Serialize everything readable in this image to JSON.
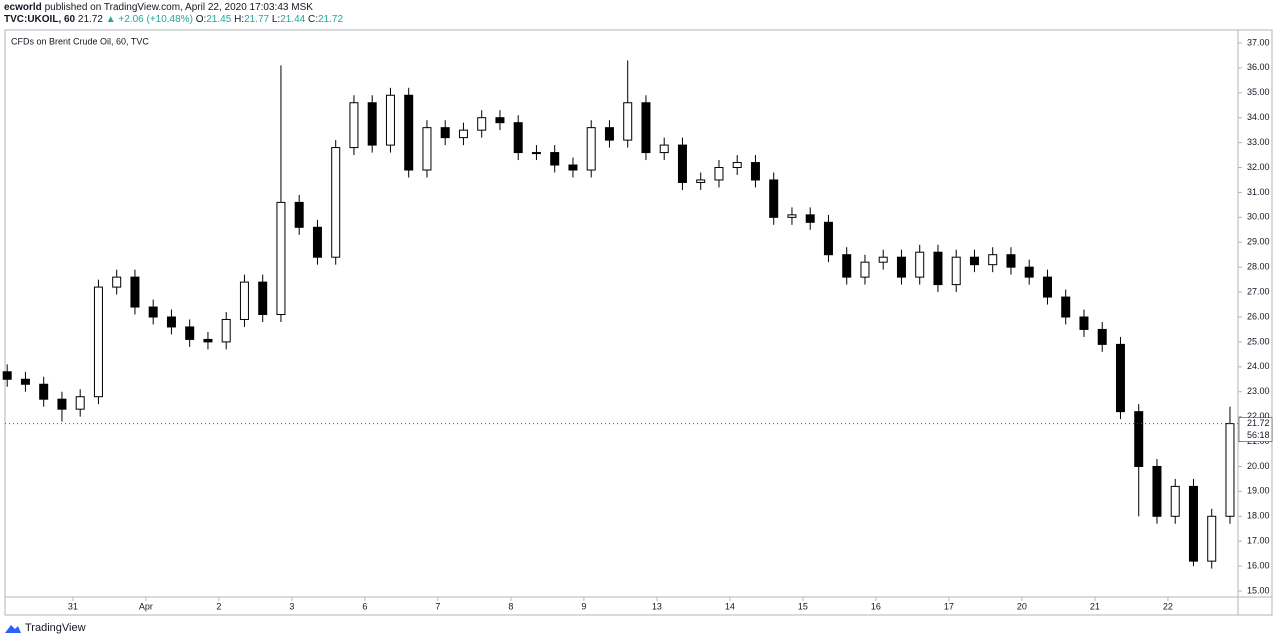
{
  "header": {
    "author": "ecworld",
    "published": "published on TradingView.com, April 22, 2020 17:03:43 MSK"
  },
  "quote": {
    "symbol": "TVC:UKOIL, 60",
    "last": "21.72",
    "arrow": "▲",
    "change": "+2.06 (+10.48%)",
    "ohlc": [
      {
        "label": "O:",
        "value": "21.45"
      },
      {
        "label": "H:",
        "value": "21.77"
      },
      {
        "label": "L:",
        "value": "21.44"
      },
      {
        "label": "C:",
        "value": "21.72"
      }
    ]
  },
  "footer": {
    "brand": "TradingView"
  },
  "chart_data": {
    "type": "candlestick",
    "title": "CFDs on Brent Crude Oil, 60, TVC",
    "up_color": "#ffffff",
    "down_color": "#000000",
    "wick_color": "#000000",
    "last_price": 21.72,
    "countdown": "56:18",
    "xlim": [
      0.07,
      16.96
    ],
    "xticks": [
      {
        "value": 1,
        "label": "31"
      },
      {
        "value": 2,
        "label": "Apr"
      },
      {
        "value": 3,
        "label": "2"
      },
      {
        "value": 4,
        "label": "3"
      },
      {
        "value": 5,
        "label": "6"
      },
      {
        "value": 6,
        "label": "7"
      },
      {
        "value": 7,
        "label": "8"
      },
      {
        "value": 8,
        "label": "9"
      },
      {
        "value": 9,
        "label": "13"
      },
      {
        "value": 10,
        "label": "14"
      },
      {
        "value": 11,
        "label": "15"
      },
      {
        "value": 12,
        "label": "16"
      },
      {
        "value": 13,
        "label": "17"
      },
      {
        "value": 14,
        "label": "20"
      },
      {
        "value": 15,
        "label": "21"
      },
      {
        "value": 16,
        "label": "22"
      }
    ],
    "ylim": [
      14.76,
      37.52
    ],
    "yticks": [
      {
        "value": 15,
        "label": "15.00"
      },
      {
        "value": 16,
        "label": "16.00"
      },
      {
        "value": 17,
        "label": "17.00"
      },
      {
        "value": 18,
        "label": "18.00"
      },
      {
        "value": 19,
        "label": "19.00"
      },
      {
        "value": 20,
        "label": "20.00"
      },
      {
        "value": 21,
        "label": "21.00"
      },
      {
        "value": 22,
        "label": "22.00"
      },
      {
        "value": 23,
        "label": "23.00"
      },
      {
        "value": 24,
        "label": "24.00"
      },
      {
        "value": 25,
        "label": "25.00"
      },
      {
        "value": 26,
        "label": "26.00"
      },
      {
        "value": 27,
        "label": "27.00"
      },
      {
        "value": 28,
        "label": "28.00"
      },
      {
        "value": 29,
        "label": "29.00"
      },
      {
        "value": 30,
        "label": "30.00"
      },
      {
        "value": 31,
        "label": "31.00"
      },
      {
        "value": 32,
        "label": "32.00"
      },
      {
        "value": 33,
        "label": "33.00"
      },
      {
        "value": 34,
        "label": "34.00"
      },
      {
        "value": 35,
        "label": "35.00"
      },
      {
        "value": 36,
        "label": "36.00"
      },
      {
        "value": 37,
        "label": "37.00"
      }
    ],
    "x": [
      0.1,
      0.35,
      0.6,
      0.85,
      1.1,
      1.35,
      1.6,
      1.85,
      2.1,
      2.35,
      2.6,
      2.85,
      3.1,
      3.35,
      3.6,
      3.85,
      4.1,
      4.35,
      4.6,
      4.85,
      5.1,
      5.35,
      5.6,
      5.85,
      6.1,
      6.35,
      6.6,
      6.85,
      7.1,
      7.35,
      7.6,
      7.85,
      8.1,
      8.35,
      8.6,
      8.85,
      9.1,
      9.35,
      9.6,
      9.85,
      10.1,
      10.35,
      10.6,
      10.85,
      11.1,
      11.35,
      11.6,
      11.85,
      12.1,
      12.35,
      12.6,
      12.85,
      13.1,
      13.35,
      13.6,
      13.85,
      14.1,
      14.35,
      14.6,
      14.85,
      15.1,
      15.35,
      15.6,
      15.85,
      16.1,
      16.35,
      16.6,
      16.85
    ],
    "open": [
      23.8,
      23.5,
      23.3,
      22.7,
      22.3,
      22.8,
      27.2,
      27.6,
      26.4,
      26.0,
      25.6,
      25.1,
      25.0,
      25.9,
      27.4,
      26.1,
      30.6,
      29.6,
      28.4,
      32.8,
      34.6,
      32.9,
      34.9,
      31.9,
      33.6,
      33.2,
      33.5,
      34.0,
      33.8,
      32.6,
      32.6,
      32.1,
      31.9,
      33.6,
      33.1,
      34.6,
      32.6,
      32.9,
      31.4,
      31.5,
      32.0,
      32.2,
      31.5,
      30.0,
      30.1,
      29.8,
      28.5,
      27.6,
      28.2,
      28.4,
      27.6,
      28.6,
      27.3,
      28.4,
      28.1,
      28.5,
      28.0,
      27.6,
      26.8,
      26.0,
      25.5,
      24.9,
      22.2,
      20.0,
      18.0,
      19.2,
      16.2,
      18.0
    ],
    "high": [
      24.1,
      23.8,
      23.6,
      23.0,
      23.1,
      27.5,
      27.9,
      27.9,
      26.7,
      26.3,
      25.9,
      25.4,
      26.2,
      27.7,
      27.7,
      36.1,
      30.9,
      29.9,
      33.1,
      34.9,
      34.9,
      35.2,
      35.2,
      33.9,
      33.9,
      33.8,
      34.3,
      34.3,
      34.1,
      32.9,
      32.9,
      32.4,
      33.9,
      33.9,
      36.3,
      34.9,
      33.2,
      33.2,
      31.8,
      32.3,
      32.5,
      32.5,
      31.8,
      30.4,
      30.4,
      30.1,
      28.8,
      28.5,
      28.7,
      28.7,
      28.9,
      28.9,
      28.7,
      28.7,
      28.8,
      28.8,
      28.3,
      27.9,
      27.1,
      26.3,
      25.8,
      25.2,
      22.5,
      20.3,
      19.5,
      19.5,
      18.3,
      22.4
    ],
    "low": [
      23.2,
      23.0,
      22.4,
      21.8,
      22.0,
      22.5,
      26.9,
      26.1,
      25.7,
      25.3,
      24.8,
      24.7,
      24.7,
      25.6,
      25.8,
      25.8,
      29.3,
      28.1,
      28.1,
      32.5,
      32.6,
      32.6,
      31.6,
      31.6,
      32.9,
      32.9,
      33.2,
      33.5,
      32.3,
      32.3,
      31.8,
      31.6,
      31.6,
      32.8,
      32.8,
      32.3,
      32.3,
      31.1,
      31.1,
      31.2,
      31.7,
      31.2,
      29.7,
      29.7,
      29.5,
      28.2,
      27.3,
      27.3,
      27.9,
      27.3,
      27.3,
      27.0,
      27.0,
      27.8,
      27.8,
      27.7,
      27.3,
      26.5,
      25.7,
      25.2,
      24.6,
      21.9,
      18.0,
      17.7,
      17.7,
      16.0,
      15.9,
      17.7
    ],
    "close": [
      23.5,
      23.3,
      22.7,
      22.3,
      22.8,
      27.2,
      27.6,
      26.4,
      26.0,
      25.6,
      25.1,
      25.0,
      25.9,
      27.4,
      26.1,
      30.6,
      29.6,
      28.4,
      32.8,
      34.6,
      32.9,
      34.9,
      31.9,
      33.6,
      33.2,
      33.5,
      34.0,
      33.8,
      32.6,
      32.6,
      32.1,
      31.9,
      33.6,
      33.1,
      34.6,
      32.6,
      32.9,
      31.4,
      31.5,
      32.0,
      32.2,
      31.5,
      30.0,
      30.1,
      29.8,
      28.5,
      27.6,
      28.2,
      28.4,
      27.6,
      28.6,
      27.3,
      28.4,
      28.1,
      28.5,
      28.0,
      27.6,
      26.8,
      26.0,
      25.5,
      24.9,
      22.2,
      20.0,
      18.0,
      19.2,
      16.2,
      18.0,
      21.72
    ]
  }
}
